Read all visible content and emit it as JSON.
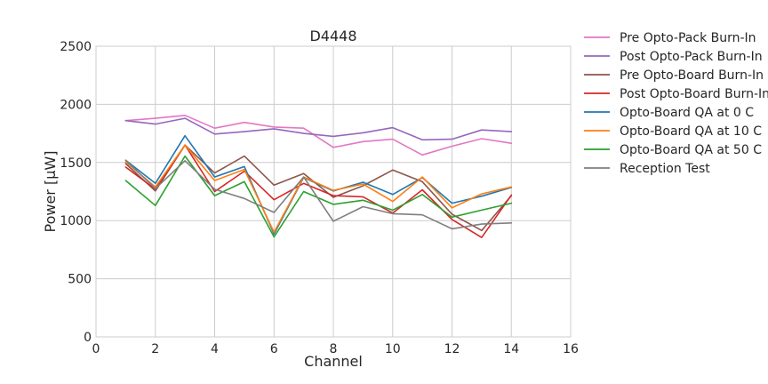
{
  "chart_data": {
    "type": "line",
    "title": "D4448",
    "xlabel": "Channel",
    "ylabel": "Power [μW]",
    "xlim": [
      0,
      16
    ],
    "ylim": [
      0,
      2500
    ],
    "xticks": [
      0,
      2,
      4,
      6,
      8,
      10,
      12,
      14,
      16
    ],
    "yticks": [
      0,
      500,
      1000,
      1500,
      2000,
      2500
    ],
    "grid": true,
    "legend_position": "outside-right",
    "x": [
      1,
      2,
      3,
      4,
      5,
      6,
      7,
      8,
      9,
      10,
      11,
      12,
      13,
      14
    ],
    "series": [
      {
        "name": "Pre Opto-Pack Burn-In",
        "color": "#e377c2",
        "values": [
          1860,
          1880,
          1905,
          1795,
          1845,
          1805,
          1795,
          1630,
          1680,
          1700,
          1565,
          1640,
          1705,
          1665
        ]
      },
      {
        "name": "Post Opto-Pack Burn-In",
        "color": "#9467bd",
        "values": [
          1860,
          1830,
          1880,
          1745,
          1765,
          1790,
          1750,
          1725,
          1755,
          1800,
          1695,
          1700,
          1780,
          1765
        ]
      },
      {
        "name": "Pre Opto-Board Burn-In",
        "color": "#8c564b",
        "values": [
          1490,
          1255,
          1650,
          1410,
          1555,
          1305,
          1405,
          1200,
          1300,
          1435,
          1335,
          1055,
          915,
          1215
        ]
      },
      {
        "name": "Post Opto-Board Burn-In",
        "color": "#d62728",
        "values": [
          1460,
          1270,
          1650,
          1250,
          1425,
          1180,
          1320,
          1215,
          1205,
          1065,
          1265,
          1010,
          855,
          1220
        ]
      },
      {
        "name": "Opto-Board QA at 0 C",
        "color": "#1f77b4",
        "values": [
          1520,
          1320,
          1730,
          1375,
          1465,
          885,
          1370,
          1255,
          1330,
          1225,
          1370,
          1150,
          1210,
          1285
        ]
      },
      {
        "name": "Opto-Board QA at 10 C",
        "color": "#ff7f0e",
        "values": [
          1505,
          1290,
          1650,
          1345,
          1440,
          900,
          1375,
          1260,
          1315,
          1165,
          1375,
          1110,
          1230,
          1290
        ]
      },
      {
        "name": "Opto-Board QA at 50 C",
        "color": "#2ca02c",
        "values": [
          1345,
          1130,
          1555,
          1215,
          1335,
          860,
          1250,
          1140,
          1175,
          1090,
          1225,
          1030,
          1090,
          1150
        ]
      },
      {
        "name": "Reception Test",
        "color": "#7f7f7f",
        "values": [
          1520,
          1275,
          1515,
          1270,
          1190,
          1070,
          1375,
          995,
          1120,
          1060,
          1050,
          930,
          970,
          980
        ]
      }
    ]
  }
}
